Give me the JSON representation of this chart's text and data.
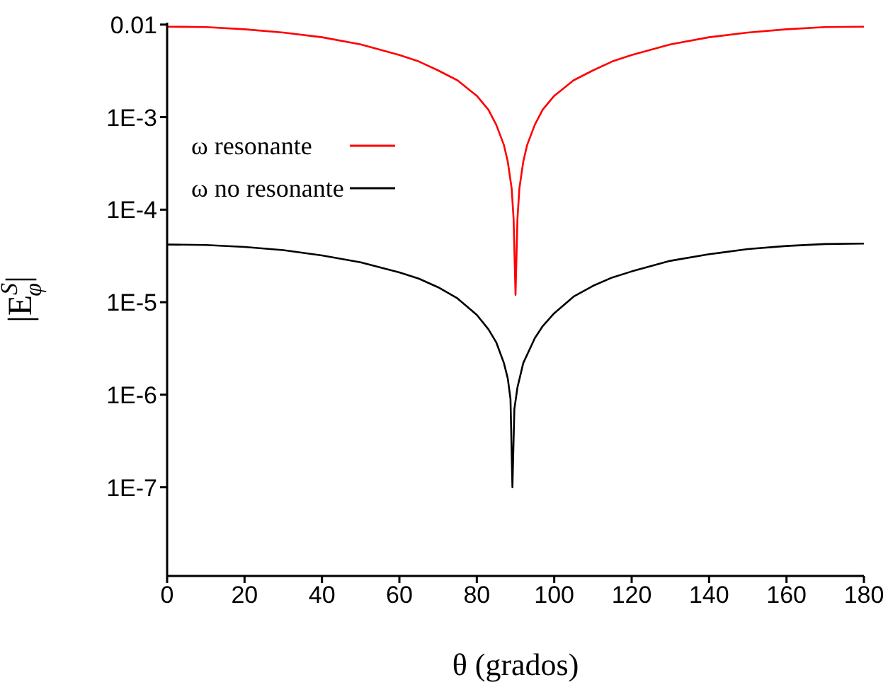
{
  "chart_data": {
    "type": "line",
    "xlabel": "θ (grados)",
    "ylabel": "|E$^{S}$$_{φ}$|",
    "series": [
      {
        "name": "ω resonante",
        "color": "#ff0000",
        "x": [
          0,
          10,
          20,
          30,
          40,
          50,
          60,
          65,
          70,
          75,
          80,
          83,
          85,
          87,
          88,
          89,
          89.5,
          90,
          90.5,
          91,
          92,
          93,
          95,
          97,
          100,
          105,
          110,
          115,
          120,
          130,
          140,
          150,
          160,
          170,
          180
        ],
        "values": [
          0.0095,
          0.0094,
          0.0089,
          0.0082,
          0.0073,
          0.0061,
          0.0047,
          0.004,
          0.0032,
          0.0025,
          0.0017,
          0.0012,
          0.00083,
          0.0005,
          0.00033,
          0.00017,
          8e-05,
          1.2e-05,
          8e-05,
          0.00017,
          0.00033,
          0.0005,
          0.00083,
          0.0012,
          0.0017,
          0.0025,
          0.0032,
          0.004,
          0.0047,
          0.0061,
          0.0073,
          0.0082,
          0.0089,
          0.0094,
          0.0095
        ]
      },
      {
        "name": "ω no resonante",
        "color": "#000000",
        "x": [
          0,
          10,
          20,
          30,
          40,
          50,
          60,
          65,
          70,
          75,
          80,
          83,
          85,
          87,
          88,
          88.7,
          89.2,
          89.7,
          90.5,
          92,
          95,
          97,
          100,
          105,
          110,
          115,
          120,
          130,
          140,
          150,
          160,
          170,
          180
        ],
        "values": [
          4.2e-05,
          4.15e-05,
          3.95e-05,
          3.65e-05,
          3.2e-05,
          2.7e-05,
          2.1e-05,
          1.8e-05,
          1.45e-05,
          1.1e-05,
          7.3e-06,
          5.1e-06,
          3.7e-06,
          2.2e-06,
          1.5e-06,
          9e-07,
          1e-07,
          7e-07,
          1.2e-06,
          2.2e-06,
          4.1e-06,
          5.5e-06,
          7.6e-06,
          1.15e-05,
          1.5e-05,
          1.85e-05,
          2.15e-05,
          2.8e-05,
          3.3e-05,
          3.75e-05,
          4.05e-05,
          4.25e-05,
          4.3e-05
        ]
      }
    ],
    "xlim": [
      0,
      180
    ],
    "xticks": [
      0,
      20,
      40,
      60,
      80,
      100,
      120,
      140,
      160,
      180
    ],
    "ylim": [
      1.1e-08,
      0.0105
    ],
    "yticks": [
      {
        "value": 1e-07,
        "label": "1E-7"
      },
      {
        "value": 1e-06,
        "label": "1E-6"
      },
      {
        "value": 1e-05,
        "label": "1E-5"
      },
      {
        "value": 0.0001,
        "label": "1E-4"
      },
      {
        "value": 0.001,
        "label": "1E-3"
      },
      0.01
    ],
    "log": "y",
    "legend": "top left",
    "marker": "none",
    "line_style": "solid"
  }
}
